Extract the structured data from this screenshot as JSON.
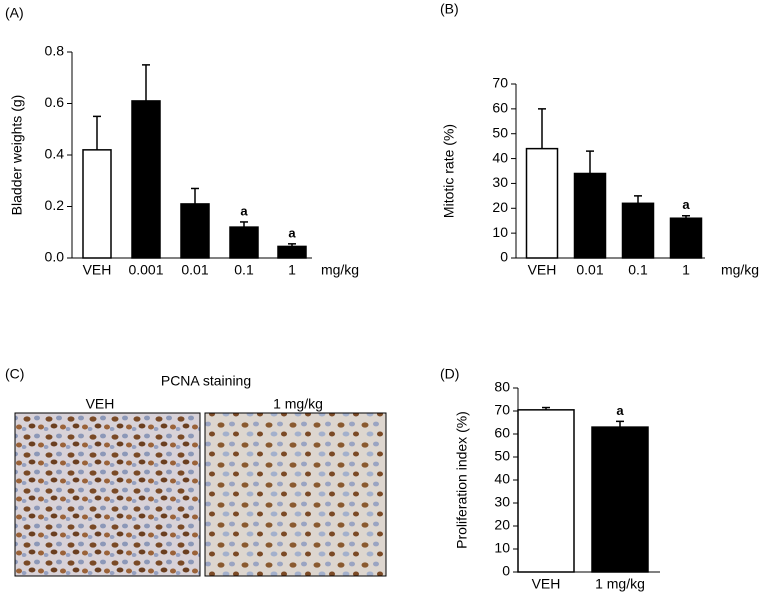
{
  "chart_data": [
    {
      "type": "bar",
      "panel": "(A)",
      "y_label": "Bladder weights (g)",
      "x_label": "mg/kg",
      "categories": [
        "VEH",
        "0.001",
        "0.01",
        "0.1",
        "1"
      ],
      "values": [
        0.42,
        0.61,
        0.21,
        0.12,
        0.045
      ],
      "errors": [
        0.13,
        0.14,
        0.06,
        0.02,
        0.01
      ],
      "colors": [
        "#ffffff",
        "#000000",
        "#000000",
        "#000000",
        "#000000"
      ],
      "annotations": [
        null,
        null,
        null,
        "a",
        "a"
      ],
      "ylim": [
        0,
        0.8
      ],
      "yticks": [
        {
          "value": 0,
          "label": "0.0"
        },
        0.2,
        0.4,
        0.6,
        0.8
      ]
    },
    {
      "type": "bar",
      "panel": "(B)",
      "y_label": "Mitotic rate (%)",
      "x_label": "mg/kg",
      "categories": [
        "VEH",
        "0.01",
        "0.1",
        "1"
      ],
      "values": [
        44,
        34,
        22,
        16
      ],
      "errors": [
        16,
        9,
        3,
        1
      ],
      "colors": [
        "#ffffff",
        "#000000",
        "#000000",
        "#000000"
      ],
      "annotations": [
        null,
        null,
        null,
        "a"
      ],
      "ylim": [
        0,
        70
      ],
      "yticks": [
        0,
        10,
        20,
        30,
        40,
        50,
        60,
        70
      ]
    },
    {
      "type": "bar",
      "panel": "(D)",
      "y_label": "Proliferation index (%)",
      "categories": [
        "VEH",
        "1 mg/kg"
      ],
      "values": [
        70.5,
        63
      ],
      "errors": [
        1,
        2.5
      ],
      "colors": [
        "#ffffff",
        "#000000"
      ],
      "annotations": [
        null,
        "a"
      ],
      "ylim": [
        0,
        80
      ],
      "yticks": [
        0,
        10,
        20,
        30,
        40,
        50,
        60,
        70,
        80
      ]
    }
  ],
  "panel_c": {
    "panel": "(C)",
    "title": "PCNA staining",
    "images": [
      "VEH",
      "1 mg/kg"
    ]
  }
}
